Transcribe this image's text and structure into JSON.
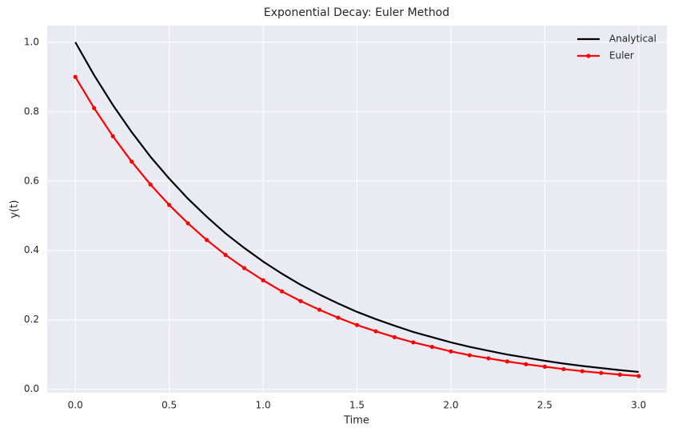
{
  "chart_data": {
    "type": "line",
    "title": "Exponential Decay: Euler Method",
    "x_label": "Time",
    "y_label": "y(t)",
    "x": [
      0,
      0.1,
      0.2,
      0.3,
      0.4,
      0.5,
      0.6,
      0.7,
      0.8,
      0.9,
      1.0,
      1.1,
      1.2,
      1.3,
      1.4,
      1.5,
      1.6,
      1.7,
      1.8,
      1.9,
      2.0,
      2.1,
      2.2,
      2.3,
      2.4,
      2.5,
      2.6,
      2.7,
      2.8,
      2.9,
      3.0
    ],
    "series": [
      {
        "name": "Analytical",
        "color": "#000000",
        "marker": false,
        "values": [
          1.0,
          0.905,
          0.819,
          0.741,
          0.67,
          0.607,
          0.549,
          0.497,
          0.449,
          0.407,
          0.368,
          0.333,
          0.301,
          0.273,
          0.247,
          0.223,
          0.202,
          0.183,
          0.165,
          0.15,
          0.135,
          0.122,
          0.111,
          0.1,
          0.091,
          0.082,
          0.074,
          0.067,
          0.061,
          0.055,
          0.05
        ]
      },
      {
        "name": "Euler",
        "color": "#ff0000",
        "marker": true,
        "values": [
          0.9,
          0.81,
          0.729,
          0.656,
          0.59,
          0.531,
          0.478,
          0.43,
          0.387,
          0.349,
          0.314,
          0.282,
          0.254,
          0.229,
          0.206,
          0.185,
          0.167,
          0.15,
          0.135,
          0.122,
          0.109,
          0.098,
          0.089,
          0.08,
          0.072,
          0.065,
          0.058,
          0.052,
          0.047,
          0.042,
          0.038
        ]
      }
    ],
    "xlim": [
      -0.15,
      3.15
    ],
    "ylim": [
      -0.01,
      1.048
    ],
    "xticks": [
      {
        "value": 0,
        "label": "0.0"
      },
      0.5,
      {
        "value": 1,
        "label": "1.0"
      },
      1.5,
      {
        "value": 2,
        "label": "2.0"
      },
      2.5,
      {
        "value": 3,
        "label": "3.0"
      }
    ],
    "yticks": [
      {
        "value": 0,
        "label": "0.0"
      },
      0.2,
      0.4,
      0.6,
      0.8,
      {
        "value": 1,
        "label": "1.0"
      }
    ],
    "grid": true,
    "legend": "upper right"
  }
}
